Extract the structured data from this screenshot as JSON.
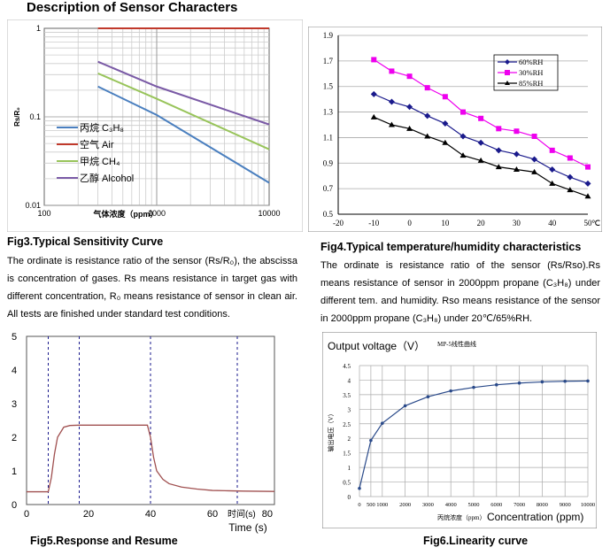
{
  "page_title": "Description of Sensor Characters",
  "fig3": {
    "caption": "Fig3.Typical Sensitivity Curve",
    "paragraph": "The ordinate is resistance ratio of the sensor (Rs/R₀), the abscissa is concentration of gases. Rs means resistance in target gas with different concentration, R₀ means resistance of sensor in clean air. All tests are finished under standard test conditions."
  },
  "fig4": {
    "caption": "Fig4.Typical temperature/humidity characteristics",
    "paragraph": "The ordinate is resistance ratio of the sensor (Rs/Rso).Rs means resistance of sensor in 2000ppm propane (C₃H₈) under different tem. and humidity. Rso means resistance of the sensor in 2000ppm propane (C₃H₈) under 20℃/65%RH."
  },
  "fig5": {
    "caption": "Fig5.Response and Resume"
  },
  "fig6": {
    "caption": "Fig6.Linearity curve"
  },
  "colors": {
    "blue": "#4a7fbf",
    "red": "#c0392b",
    "green": "#98c45a",
    "purple": "#7a5aa6",
    "navy": "#1a1a8c",
    "magenta": "#ee00ee",
    "black": "#000000",
    "response": "#a05050"
  },
  "chart_data": [
    {
      "id": "fig3",
      "type": "line",
      "xscale": "log",
      "yscale": "log",
      "xlim": [
        100,
        10000
      ],
      "ylim": [
        0.01,
        1
      ],
      "xticks": [
        "100",
        "1000",
        "10000"
      ],
      "yticks": [
        "0.01",
        "0.1",
        "1"
      ],
      "xlabel": "气体浓度（ppm）",
      "ylabel": "Rs/R₀",
      "grid": true,
      "legend": "left-bottom",
      "series": [
        {
          "name": "丙烷 C₃H₈",
          "color": "#4a7fbf",
          "x": [
            300,
            1000,
            10000
          ],
          "y": [
            0.22,
            0.105,
            0.018
          ]
        },
        {
          "name": "空气 Air",
          "color": "#c0392b",
          "x": [
            300,
            10000
          ],
          "y": [
            1,
            1
          ]
        },
        {
          "name": "甲烷 CH₄",
          "color": "#98c45a",
          "x": [
            300,
            1000,
            10000
          ],
          "y": [
            0.31,
            0.16,
            0.043
          ]
        },
        {
          "name": "乙醇 Alcohol",
          "color": "#7a5aa6",
          "x": [
            300,
            1000,
            10000
          ],
          "y": [
            0.42,
            0.22,
            0.082
          ]
        }
      ]
    },
    {
      "id": "fig4",
      "type": "line",
      "x": [
        -10,
        -5,
        0,
        5,
        10,
        15,
        20,
        25,
        30,
        35,
        40,
        45,
        50
      ],
      "xlim": [
        -20,
        50
      ],
      "ylim": [
        0.5,
        1.9
      ],
      "xticks": [
        "-20",
        "-10",
        "0",
        "10",
        "20",
        "30",
        "40",
        "50"
      ],
      "xunit": "℃",
      "yticks": [
        "0.5",
        "0.7",
        "0.9",
        "1.1",
        "1.3",
        "1.5",
        "1.7",
        "1.9"
      ],
      "grid": true,
      "legend": "top-right",
      "series": [
        {
          "name": "60%RH",
          "color": "#1a1a8c",
          "marker": "diamond",
          "values": [
            1.44,
            1.38,
            1.34,
            1.27,
            1.21,
            1.11,
            1.06,
            1.0,
            0.97,
            0.93,
            0.85,
            0.79,
            0.74
          ]
        },
        {
          "name": "30%RH",
          "color": "#ee00ee",
          "marker": "square",
          "values": [
            1.71,
            1.62,
            1.58,
            1.49,
            1.42,
            1.3,
            1.25,
            1.17,
            1.15,
            1.11,
            1.0,
            0.94,
            0.87
          ]
        },
        {
          "name": "85%RH",
          "color": "#000000",
          "marker": "triangle",
          "values": [
            1.26,
            1.2,
            1.17,
            1.11,
            1.06,
            0.96,
            0.92,
            0.87,
            0.85,
            0.83,
            0.74,
            0.69,
            0.64
          ]
        }
      ]
    },
    {
      "id": "fig5",
      "type": "line",
      "xlim": [
        0,
        80
      ],
      "ylim": [
        0,
        5
      ],
      "xticks": [
        "0",
        "20",
        "40",
        "60",
        "80"
      ],
      "yticks": [
        "0",
        "1",
        "2",
        "3",
        "4",
        "5"
      ],
      "xlabel": "Time (s)",
      "xunit_note": "时间(s)",
      "markers_x": [
        7,
        17,
        40,
        68
      ],
      "series": [
        {
          "color": "#a05050",
          "x": [
            0,
            7,
            8,
            9,
            10,
            12,
            14,
            17,
            25,
            30,
            39,
            40,
            41,
            42,
            44,
            46,
            50,
            55,
            60,
            65,
            70,
            80
          ],
          "y": [
            0.38,
            0.38,
            0.8,
            1.5,
            2.0,
            2.3,
            2.35,
            2.36,
            2.36,
            2.36,
            2.36,
            2.0,
            1.4,
            1.0,
            0.75,
            0.62,
            0.52,
            0.46,
            0.42,
            0.41,
            0.4,
            0.39
          ]
        }
      ]
    },
    {
      "id": "fig6",
      "type": "line",
      "x": [
        0,
        500,
        1000,
        2000,
        3000,
        4000,
        5000,
        6000,
        7000,
        8000,
        9000,
        10000
      ],
      "values": [
        0.28,
        1.93,
        2.52,
        3.12,
        3.43,
        3.63,
        3.75,
        3.84,
        3.9,
        3.94,
        3.96,
        3.97
      ],
      "xlim": [
        0,
        10000
      ],
      "ylim": [
        0,
        4.5
      ],
      "xticks": [
        "0",
        "500",
        "1000",
        "2000",
        "3000",
        "4000",
        "5000",
        "6000",
        "7000",
        "8000",
        "9000",
        "10000"
      ],
      "yticks": [
        "0",
        "0.5",
        "1",
        "1.5",
        "2",
        "2.5",
        "3",
        "3.5",
        "4",
        "4.5"
      ],
      "title": "Output voltage（V）",
      "subtitle": "MP-5线性曲线",
      "ylabel": "输出电压（V）",
      "xlabel_cn": "丙烷浓度（ppm）",
      "xlabel": "Concentration (ppm)",
      "grid": true,
      "color": "#2a4a8a"
    }
  ]
}
